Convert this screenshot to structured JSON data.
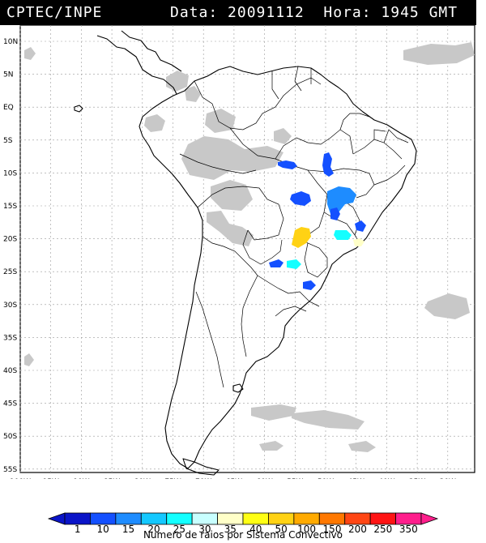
{
  "header": {
    "source": "CPTEC/INPE",
    "datetime": "Data: 20091112  Hora: 1945 GMT"
  },
  "map": {
    "lat_labels": [
      "10N",
      "5N",
      "EQ",
      "5S",
      "10S",
      "15S",
      "20S",
      "25S",
      "30S",
      "35S",
      "40S",
      "45S",
      "50S",
      "55S"
    ],
    "lon_labels": [
      "100W",
      "95W",
      "90W",
      "85W",
      "80W",
      "75W",
      "70W",
      "65W",
      "60W",
      "55W",
      "50W",
      "45W",
      "40W",
      "35W",
      "30W"
    ],
    "colors": {
      "land_outline": "#000000",
      "grid": "#9a9a9a",
      "cloud": "#c8c8c8"
    }
  },
  "legend": {
    "labels": [
      "1",
      "10",
      "15",
      "20",
      "25",
      "30",
      "35",
      "40",
      "50",
      "100",
      "150",
      "200",
      "250",
      "350"
    ],
    "colors": [
      "#0a14c8",
      "#1450ff",
      "#1e8cff",
      "#14c8ff",
      "#14ffff",
      "#c8ffff",
      "#ffffc8",
      "#ffff14",
      "#ffd214",
      "#ffaa00",
      "#ff7800",
      "#ff4614",
      "#ff1414",
      "#ff1e8c"
    ],
    "title": "Numero de raios por Sistema Convectivo"
  },
  "storm_cells": [
    {
      "color": "#1450ff"
    },
    {
      "color": "#1450ff"
    },
    {
      "color": "#1450ff"
    },
    {
      "color": "#1e8cff"
    },
    {
      "color": "#1450ff"
    },
    {
      "color": "#ffd214"
    },
    {
      "color": "#14ffff"
    },
    {
      "color": "#14ffff"
    },
    {
      "color": "#1450ff"
    },
    {
      "color": "#1450ff"
    },
    {
      "color": "#ffffc8"
    },
    {
      "color": "#1450ff"
    }
  ]
}
